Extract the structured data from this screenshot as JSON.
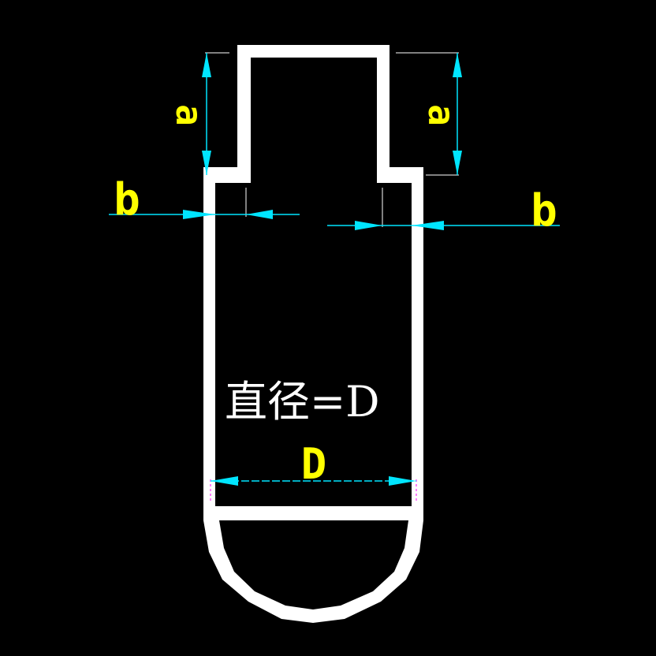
{
  "colors": {
    "background": "#000000",
    "outline": "#ffffff",
    "dimension_line": "#00e5ff",
    "dimension_text": "#ffff00",
    "label_text": "#ffffff",
    "extension_mark": "#ff00ff"
  },
  "dimensions": {
    "a_left": "a",
    "a_right": "a",
    "b_left": "b",
    "b_right": "b",
    "d": "D"
  },
  "labels": {
    "diameter": "直径=D"
  }
}
